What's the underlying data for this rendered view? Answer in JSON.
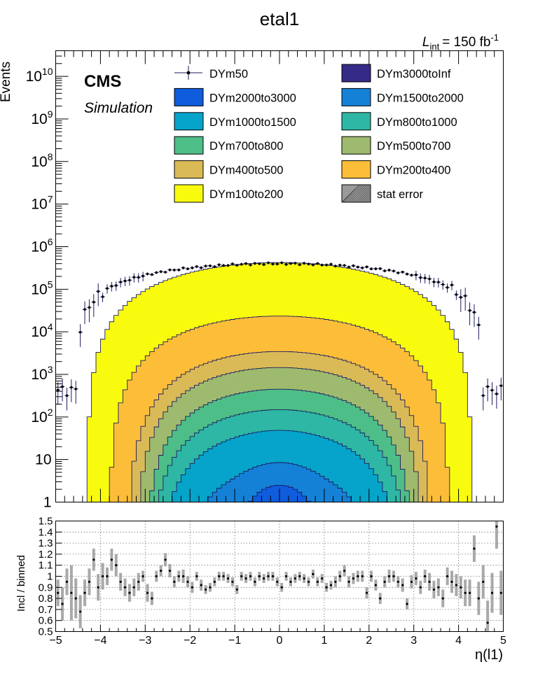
{
  "title": "etal1",
  "lumi": {
    "prefix": "L",
    "sub": "int",
    "value": "= 150 fb",
    "sup": "-1"
  },
  "cms_label": "CMS",
  "sim_label": "Simulation",
  "top_ylabel": "Events",
  "ratio_ylabel": "Incl / binned",
  "xlabel": "η(l1)",
  "colors": {
    "DYm50": "#1b1b60",
    "DYm3000toInf": "#352a87",
    "DYm2000to3000": "#0f5cdd",
    "DYm1500to2000": "#1481d6",
    "DYm1000to1500": "#06a4ca",
    "DYm800to1000": "#2eb7a4",
    "DYm700to800": "#4dbe87",
    "DYm500to700": "#9eba6e",
    "DYm400to500": "#d9ba56",
    "DYm200to400": "#fcbe39",
    "DYm100to200": "#f9fb0e",
    "stat_error": "#9a9a9a"
  },
  "legend": [
    {
      "label": "DYm50",
      "key": "DYm50",
      "kind": "marker"
    },
    {
      "label": "DYm3000toInf",
      "key": "DYm3000toInf",
      "kind": "box"
    },
    {
      "label": "DYm2000to3000",
      "key": "DYm2000to3000",
      "kind": "box"
    },
    {
      "label": "DYm1500to2000",
      "key": "DYm1500to2000",
      "kind": "box"
    },
    {
      "label": "DYm1000to1500",
      "key": "DYm1000to1500",
      "kind": "box"
    },
    {
      "label": "DYm800to1000",
      "key": "DYm800to1000",
      "kind": "box"
    },
    {
      "label": "DYm700to800",
      "key": "DYm700to800",
      "kind": "box"
    },
    {
      "label": "DYm500to700",
      "key": "DYm500to700",
      "kind": "box"
    },
    {
      "label": "DYm400to500",
      "key": "DYm400to500",
      "kind": "box"
    },
    {
      "label": "DYm200to400",
      "key": "DYm200to400",
      "kind": "box"
    },
    {
      "label": "DYm100to200",
      "key": "DYm100to200",
      "kind": "box"
    },
    {
      "label": "stat error",
      "key": "stat_error",
      "kind": "hatch"
    }
  ],
  "chart_data": {
    "type": "area",
    "title": "etal1",
    "xlabel": "η(l1)",
    "ylabel": "Events",
    "log_y": true,
    "xlim": [
      -5,
      5
    ],
    "ylim": [
      1,
      40000000000
    ],
    "nbins": 100,
    "x_ticks": [
      "−5",
      "−4",
      "−3",
      "−2",
      "−1",
      "0",
      "1",
      "2",
      "3",
      "4",
      "5"
    ],
    "y_ticks": [
      {
        "value": 1,
        "label": "1"
      },
      {
        "value": 10,
        "label": "10"
      },
      {
        "value": 100,
        "label": "10",
        "sup": "2"
      },
      {
        "value": 1000,
        "label": "10",
        "sup": "3"
      },
      {
        "value": 10000,
        "label": "10",
        "sup": "4"
      },
      {
        "value": 100000,
        "label": "10",
        "sup": "5"
      },
      {
        "value": 1000000,
        "label": "10",
        "sup": "6"
      },
      {
        "value": 10000000,
        "label": "10",
        "sup": "7"
      },
      {
        "value": 100000000,
        "label": "10",
        "sup": "8"
      },
      {
        "value": 1000000000,
        "label": "10",
        "sup": "9"
      },
      {
        "value": 10000000000,
        "label": "10",
        "sup": "10"
      }
    ],
    "stack_series": [
      {
        "name": "DYm100to200",
        "peak": 400000,
        "width": 4.3
      },
      {
        "name": "DYm200to400",
        "peak": 20000,
        "width": 3.8
      },
      {
        "name": "DYm400to500",
        "peak": 2000,
        "width": 3.4
      },
      {
        "name": "DYm500to700",
        "peak": 1000,
        "width": 3.2
      },
      {
        "name": "DYm700to800",
        "peak": 300,
        "width": 3.0
      },
      {
        "name": "DYm800to1000",
        "peak": 100,
        "width": 2.9
      },
      {
        "name": "DYm1000to1500",
        "peak": 40,
        "width": 2.7
      },
      {
        "name": "DYm1500to2000",
        "peak": 6,
        "width": 2.2
      },
      {
        "name": "DYm2000to3000",
        "peak": 2.2,
        "width": 1.2
      },
      {
        "name": "DYm3000toInf",
        "peak": 0.3,
        "width": 0.8
      }
    ],
    "points": {
      "name": "DYm50",
      "peak": 400000,
      "width": 4.55
    },
    "ratio": {
      "ylim": [
        0.5,
        1.5
      ],
      "y_ticks": [
        "0.5",
        "0.6",
        "0.7",
        "0.8",
        "0.9",
        "1",
        "1.1",
        "1.2",
        "1.3",
        "1.4",
        "1.5"
      ],
      "values": [
        0.85,
        0.75,
        0.95,
        0.85,
        0.8,
        0.68,
        0.85,
        0.95,
        1.15,
        0.9,
        1.0,
        1.0,
        1.15,
        1.1,
        0.95,
        0.9,
        0.85,
        0.9,
        0.95,
        1.0,
        0.85,
        0.8,
        1.0,
        1.05,
        1.15,
        1.05,
        0.95,
        1.0,
        1.0,
        0.95,
        0.9,
        1.0,
        0.92,
        0.88,
        0.9,
        0.95,
        1.0,
        1.0,
        0.98,
        0.95,
        0.88,
        1.0,
        0.98,
        1.0,
        0.95,
        1.0,
        0.98,
        1.0,
        1.0,
        0.95,
        0.9,
        1.0,
        0.95,
        0.98,
        1.0,
        0.98,
        0.95,
        1.02,
        0.95,
        0.98,
        0.9,
        0.92,
        0.95,
        1.0,
        1.05,
        0.95,
        0.98,
        1.0,
        1.0,
        0.85,
        1.0,
        0.92,
        0.8,
        0.95,
        1.0,
        1.0,
        0.95,
        0.92,
        0.75,
        0.95,
        0.98,
        0.9,
        1.0,
        0.95,
        0.88,
        0.9,
        0.8,
        1.0,
        0.95,
        0.92,
        0.9,
        0.85,
        0.85,
        1.25,
        0.8,
        0.95,
        0.58,
        0.85,
        1.45,
        0.85
      ],
      "errors": [
        0.12,
        0.15,
        0.12,
        0.25,
        0.18,
        0.15,
        0.12,
        0.12,
        0.1,
        0.12,
        0.12,
        0.08,
        0.1,
        0.1,
        0.08,
        0.08,
        0.08,
        0.08,
        0.08,
        0.05,
        0.08,
        0.06,
        0.05,
        0.05,
        0.06,
        0.06,
        0.05,
        0.05,
        0.06,
        0.05,
        0.05,
        0.04,
        0.05,
        0.04,
        0.04,
        0.04,
        0.04,
        0.04,
        0.04,
        0.04,
        0.04,
        0.04,
        0.04,
        0.04,
        0.04,
        0.04,
        0.04,
        0.04,
        0.04,
        0.04,
        0.04,
        0.04,
        0.04,
        0.04,
        0.04,
        0.04,
        0.04,
        0.04,
        0.04,
        0.04,
        0.04,
        0.04,
        0.05,
        0.05,
        0.05,
        0.05,
        0.05,
        0.05,
        0.05,
        0.05,
        0.05,
        0.05,
        0.05,
        0.05,
        0.06,
        0.05,
        0.05,
        0.06,
        0.05,
        0.06,
        0.06,
        0.06,
        0.06,
        0.08,
        0.08,
        0.08,
        0.08,
        0.08,
        0.1,
        0.1,
        0.1,
        0.12,
        0.12,
        0.12,
        0.15,
        0.15,
        0.2,
        0.18,
        0.2,
        0.2
      ]
    }
  }
}
